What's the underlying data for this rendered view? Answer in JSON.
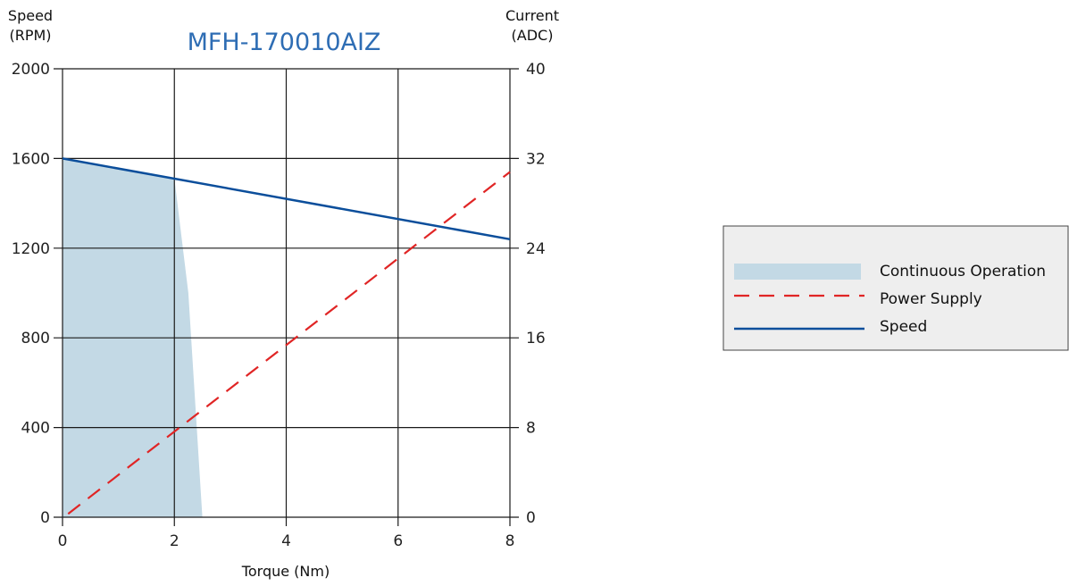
{
  "colors": {
    "title": "#2e6db4",
    "speed": "#0b4e9b",
    "power_supply": "#e02525",
    "continuous": "#c3d9e5",
    "grid": "#1a1a1a",
    "legend_bg": "#eeeeee"
  },
  "chart_data": {
    "type": "line",
    "title": "MFH-170010AIZ",
    "xlabel": "Torque (Nm)",
    "ylabel_left": [
      "Speed",
      "(RPM)"
    ],
    "ylabel_right": [
      "Current",
      "(ADC)"
    ],
    "xlim": [
      0,
      8
    ],
    "ylim_left": [
      0,
      2000
    ],
    "ylim_right": [
      0,
      40
    ],
    "x_ticks": [
      "0",
      "2",
      "4",
      "6",
      "8"
    ],
    "y_left_ticks": [
      "0",
      "400",
      "800",
      "1200",
      "1600",
      "2000"
    ],
    "y_right_ticks": [
      "0",
      "8",
      "16",
      "24",
      "32",
      "40"
    ],
    "grid": true,
    "legend_position": "right",
    "series": [
      {
        "name": "Continuous Operation",
        "kind": "area",
        "axis": "left",
        "x": [
          0,
          2,
          2.25,
          2.5,
          2.5,
          0
        ],
        "y": [
          1600,
          1510,
          1000,
          0,
          0,
          0
        ]
      },
      {
        "name": "Power Supply",
        "kind": "line-dashed",
        "axis": "right",
        "x": [
          0.1,
          8
        ],
        "y": [
          0.3,
          30.8
        ]
      },
      {
        "name": "Speed",
        "kind": "line",
        "axis": "left",
        "x": [
          0,
          8
        ],
        "y": [
          1600,
          1240
        ]
      }
    ]
  }
}
